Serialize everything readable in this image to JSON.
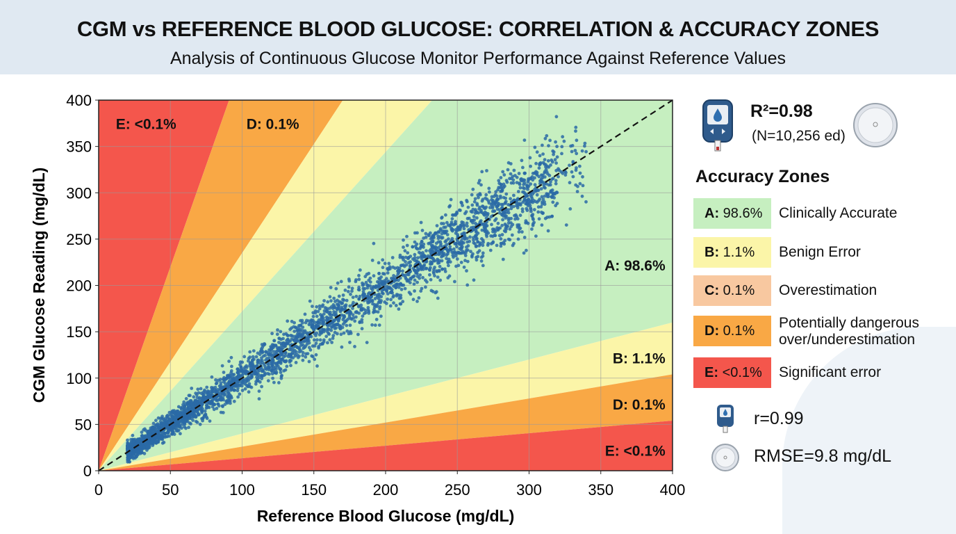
{
  "header": {
    "title": "CGM vs REFERENCE BLOOD GLUCOSE: CORRELATION & ACCURACY ZONES",
    "subtitle": "Analysis of Continuous Glucose Monitor Performance Against Reference Values"
  },
  "chart_data": {
    "type": "scatter",
    "xlabel": "Reference Blood Glucose (mg/dL)",
    "ylabel": "CGM Glucose Reading (mg/dL)",
    "xlim": [
      0,
      400
    ],
    "ylim": [
      0,
      400
    ],
    "xticks": [
      "0",
      "50",
      "100",
      "150",
      "200",
      "250",
      "300",
      "350",
      "400"
    ],
    "yticks": [
      "0",
      "50",
      "100",
      "150",
      "200",
      "250",
      "300",
      "350",
      "400"
    ],
    "grid": true,
    "identity_line": {
      "style": "dashed",
      "color": "#111111",
      "from": [
        0,
        0
      ],
      "to": [
        400,
        400
      ]
    },
    "point_color": "#2a6aa6",
    "n_points": 10256,
    "r": 0.99,
    "r_squared": 0.98,
    "rmse_mg_dl": 9.8,
    "zone_regions": [
      {
        "zone": "E",
        "bounds_slope": [
          null,
          4.4
        ],
        "color": "#f4564c"
      },
      {
        "zone": "D",
        "bounds_slope": [
          4.4,
          2.35
        ],
        "color": "#f9a845"
      },
      {
        "zone": "B",
        "bounds_slope": [
          2.35,
          1.72
        ],
        "color": "#fbf5a8"
      },
      {
        "zone": "A",
        "bounds_slope": [
          1.72,
          0.4
        ],
        "color": "#c6efc0"
      },
      {
        "zone": "B",
        "bounds_slope": [
          0.4,
          0.26
        ],
        "color": "#fbf5a8"
      },
      {
        "zone": "D",
        "bounds_slope": [
          0.26,
          0.135
        ],
        "color": "#f9a845"
      },
      {
        "zone": "E",
        "bounds_slope": [
          0.135,
          0
        ],
        "color": "#f4564c"
      }
    ],
    "zone_labels": [
      {
        "text": "E: <0.1%",
        "at": [
          12,
          375
        ]
      },
      {
        "text": "D: 0.1%",
        "at": [
          103,
          375
        ]
      },
      {
        "text": "A: 98.6%",
        "at": [
          395,
          222
        ],
        "anchor": "end"
      },
      {
        "text": "B: 1.1%",
        "at": [
          395,
          122
        ],
        "anchor": "end"
      },
      {
        "text": "D: 0.1%",
        "at": [
          395,
          72
        ],
        "anchor": "end"
      },
      {
        "text": "E: <0.1%",
        "at": [
          395,
          22
        ],
        "anchor": "end"
      }
    ]
  },
  "stats": {
    "r_squared_label": "R²=0.98",
    "n_label": "(N=10,256 ed)",
    "r_label": "r=0.99",
    "rmse_label": "RMSE=9.8 mg/dL"
  },
  "legend": {
    "title": "Accuracy Zones",
    "items": [
      {
        "code": "A:",
        "pct": "98.6%",
        "desc": "Clinically Accurate",
        "color": "#c6efc0"
      },
      {
        "code": "B:",
        "pct": "1.1%",
        "desc": "Benign Error",
        "color": "#fbf5a8"
      },
      {
        "code": "C:",
        "pct": "0.1%",
        "desc": "Overestimation",
        "color": "#f8c8a0"
      },
      {
        "code": "D:",
        "pct": "0.1%",
        "desc": "Potentially dangerous over/underestimation",
        "color": "#f9a845"
      },
      {
        "code": "E:",
        "pct": "<0.1%",
        "desc": "Significant error",
        "color": "#f4564c"
      }
    ]
  },
  "icons": {
    "meter": "glucose-meter-icon",
    "sensor": "cgm-sensor-icon"
  }
}
